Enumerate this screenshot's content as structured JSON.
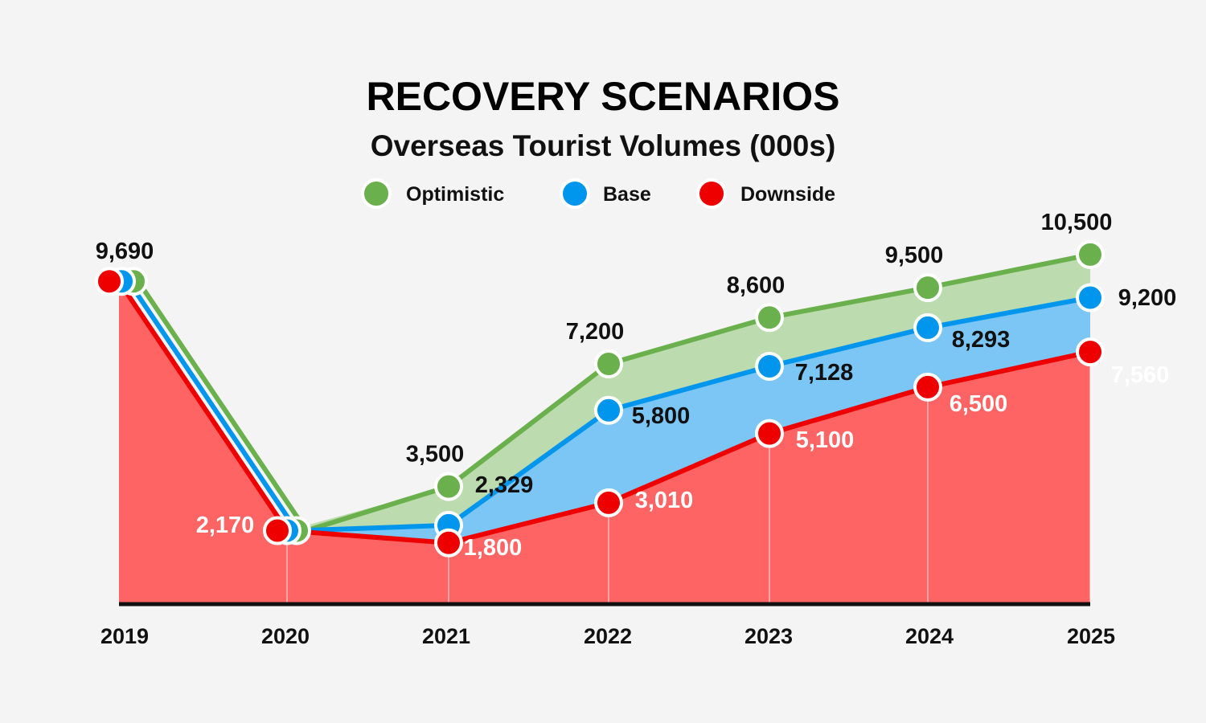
{
  "colors": {
    "optimistic": "#6ab04c",
    "optimistic_fill": "#bcdbae",
    "base": "#0096ee",
    "base_fill": "#7cc6f6",
    "downside": "#ee0000",
    "downside_fill": "#ff6464",
    "background": "#f4f4f4",
    "axis": "#111111"
  },
  "chart_data": {
    "type": "area",
    "title": "RECOVERY SCENARIOS",
    "subtitle": "Overseas Tourist Volumes (000s)",
    "x": [
      "2019",
      "2020",
      "2021",
      "2022",
      "2023",
      "2024",
      "2025"
    ],
    "ylim": [
      0,
      11000
    ],
    "grid": false,
    "legend_position": "top-center",
    "series": [
      {
        "key": "optimistic",
        "name": "Optimistic",
        "values": [
          9690,
          2170,
          3500,
          7200,
          8600,
          9500,
          10500
        ]
      },
      {
        "key": "base",
        "name": "Base",
        "values": [
          9690,
          2170,
          2329,
          5800,
          7128,
          8293,
          9200
        ]
      },
      {
        "key": "downside",
        "name": "Downside",
        "values": [
          9690,
          2170,
          1800,
          3010,
          5100,
          6500,
          7560
        ]
      }
    ],
    "data_labels": {
      "start": "9,690",
      "trough": "2,170",
      "optimistic": [
        "3,500",
        "7,200",
        "8,600",
        "9,500",
        "10,500"
      ],
      "base": [
        "2,329",
        "5,800",
        "7,128",
        "8,293",
        "9,200"
      ],
      "downside": [
        "1,800",
        "3,010",
        "5,100",
        "6,500",
        "7,560"
      ]
    }
  }
}
